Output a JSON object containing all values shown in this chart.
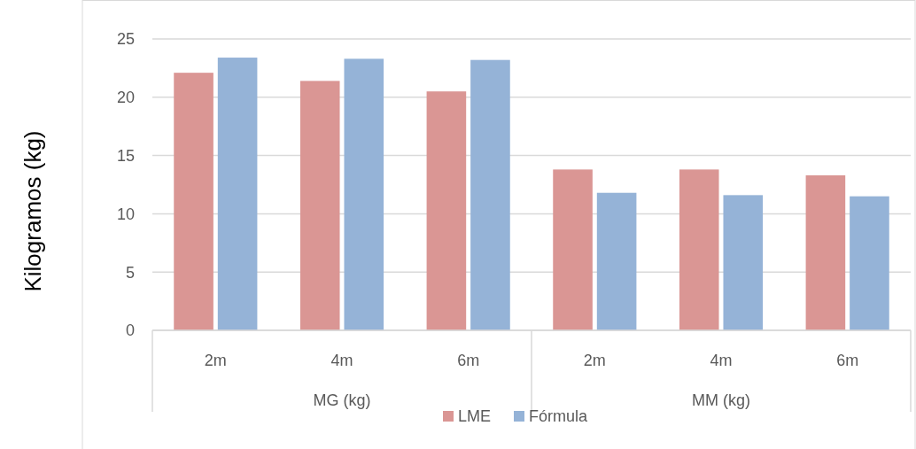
{
  "chart_data": {
    "type": "bar",
    "ylabel": "Kilogramos (kg)",
    "categories": [
      "2m",
      "4m",
      "6m",
      "2m",
      "4m",
      "6m"
    ],
    "series": [
      {
        "name": "LME",
        "color": "#da9694",
        "values": [
          22.1,
          21.4,
          20.5,
          13.8,
          13.8,
          13.3
        ]
      },
      {
        "name": "Fórmula",
        "color": "#95b3d7",
        "values": [
          23.4,
          23.3,
          23.2,
          11.8,
          11.6,
          11.5
        ]
      }
    ],
    "annotations": [
      "MG (kg)",
      "MM (kg)"
    ],
    "ylim": [
      0,
      25
    ],
    "yticks": [
      0,
      5,
      10,
      15,
      20,
      25
    ],
    "grid": "y",
    "legend": "bottom"
  }
}
